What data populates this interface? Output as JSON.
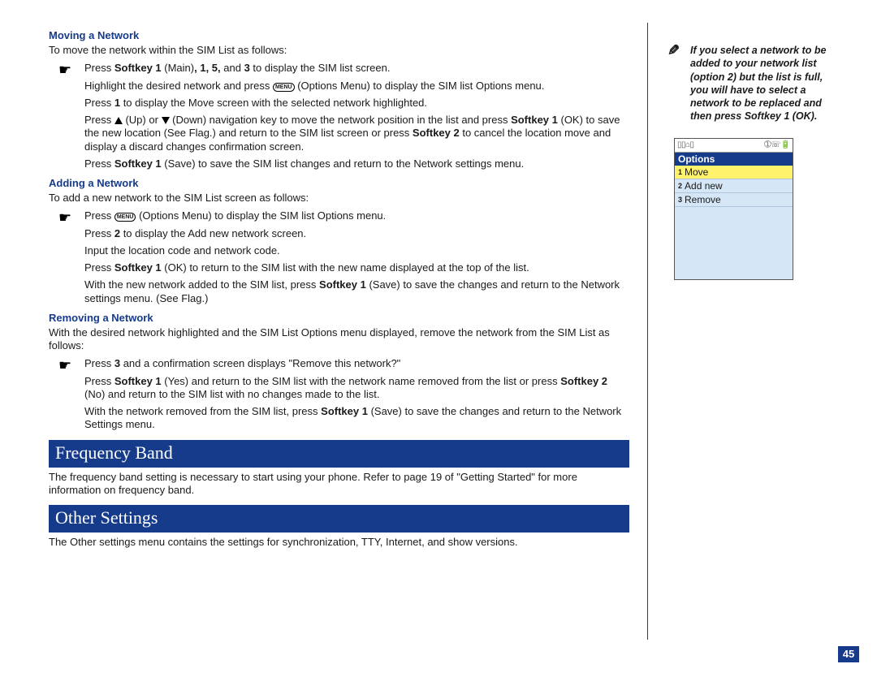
{
  "colors": {
    "accent": "#163b8b",
    "highlight": "#fff36b",
    "phone_bg": "#d5e6f6"
  },
  "page_number": "45",
  "sections": {
    "moving": {
      "heading": "Moving a Network",
      "intro": "To move the network within the SIM List as follows:",
      "steps": [
        "Press <b>Softkey 1</b> (Main)<b>, 1, 5,</b> and <b>3</b> to display the SIM list screen.",
        "Highlight the desired network and press <span class='boxed'>MENU</span> (Options Menu) to display the SIM list Options menu.",
        "Press <b>1</b> to display the Move screen with the selected network highlighted.",
        "Press <span class='tri-up'></span> (Up) or <span class='tri-down'></span> (Down) navigation key to move the network position in the list and press <b>Softkey 1</b> (OK) to save the new location (See Flag.) and return to the SIM list screen or press <b>Softkey 2</b> to cancel the location move and display a discard changes confirmation screen.",
        "Press <b>Softkey 1</b> (Save) to save the SIM list changes and return to the Network settings menu."
      ]
    },
    "adding": {
      "heading": "Adding a Network",
      "intro": "To add a new network to the SIM List screen as follows:",
      "steps": [
        "Press <span class='boxed'>MENU</span> (Options Menu) to display the SIM list Options menu.",
        "Press <b>2</b> to display the Add new network screen.",
        "Input the location code and network code.",
        "Press <b>Softkey 1</b> (OK) to return to the SIM list with the new name displayed at the top of the list.",
        "With the new network added to the SIM list, press <b>Softkey 1</b> (Save) to save the changes and return to the Network settings menu. (See Flag.)"
      ]
    },
    "removing": {
      "heading": "Removing a Network",
      "intro": "With the desired network highlighted and the SIM List Options menu displayed, remove the network from the SIM List as follows:",
      "steps": [
        "Press <b>3</b> and a confirmation screen displays \"Remove this network?\"",
        "Press <b>Softkey 1</b> (Yes) and return to the SIM list with the network name removed from the list or press <b>Softkey 2</b> (No) and return to the SIM list with no changes made to the list.",
        "With the network removed from the SIM list, press <b>Softkey 1</b> (Save) to save the changes and return to the Network Settings menu."
      ]
    },
    "frequency": {
      "bar": "Frequency Band",
      "text": "The frequency band setting is necessary to start using your phone. Refer to page 19 of \"Getting Started\" for more information on frequency band."
    },
    "other": {
      "bar": "Other Settings",
      "text": "The Other settings menu contains the settings for synchronization, TTY, Internet, and show versions."
    }
  },
  "side": {
    "note": "If you select a network to be added to your network list (option 2) but the list is full, you will have to select a network to be replaced and then press <b>Softkey 1</b> (OK).",
    "phone": {
      "title": "Options",
      "items": [
        {
          "n": "1",
          "label": "Move",
          "selected": true
        },
        {
          "n": "2",
          "label": "Add new",
          "selected": false
        },
        {
          "n": "3",
          "label": "Remove",
          "selected": false
        }
      ]
    }
  }
}
